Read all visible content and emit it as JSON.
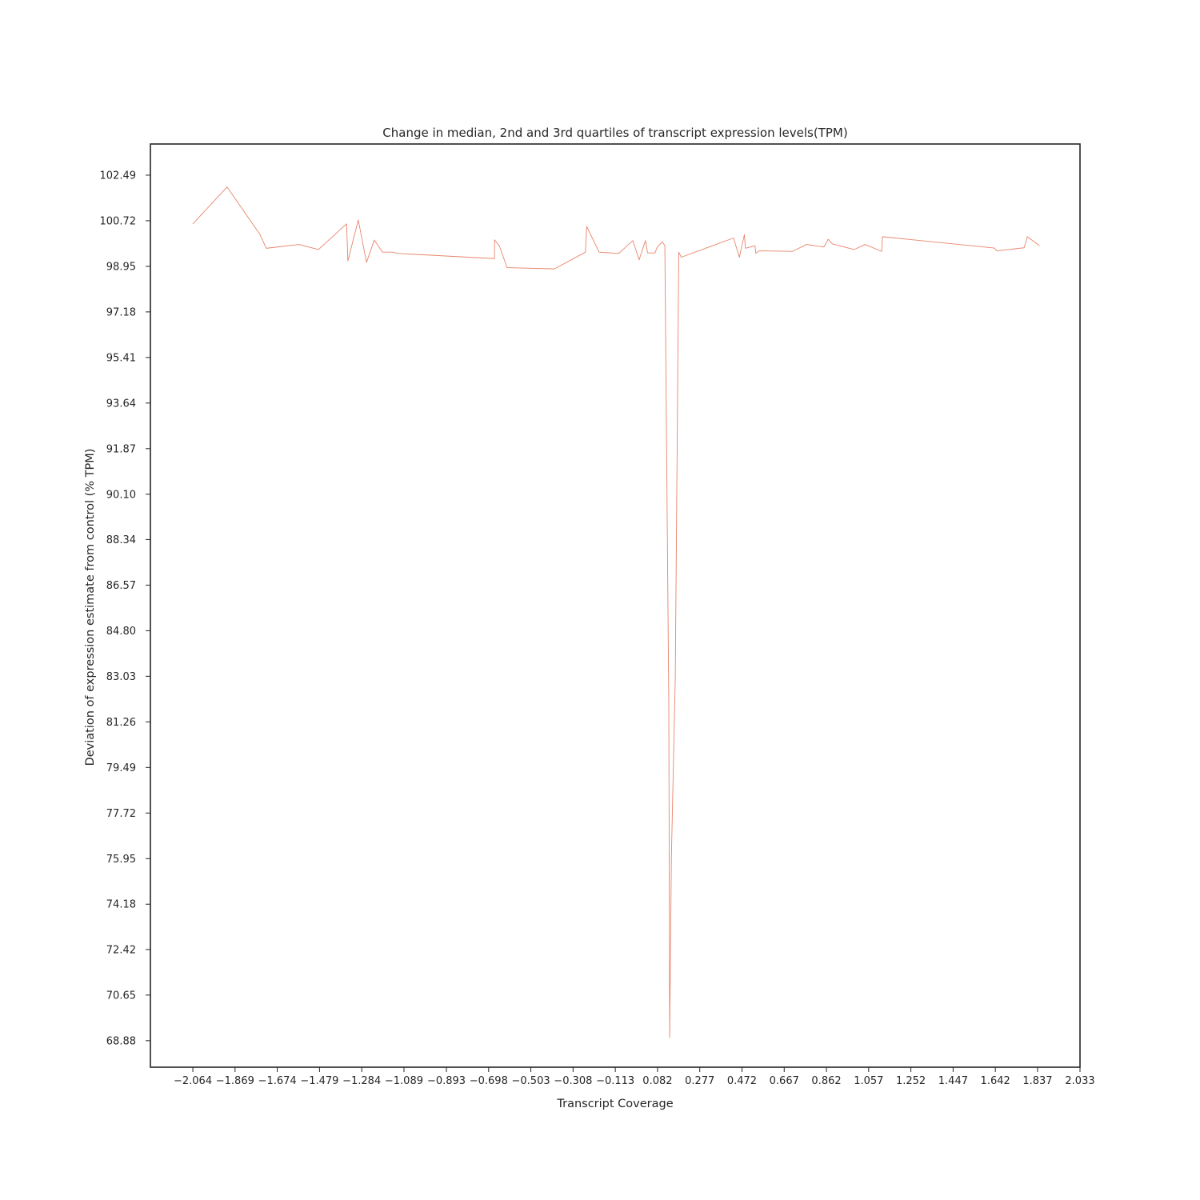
{
  "chart_data": {
    "type": "line",
    "title": "Change in median, 2nd and 3rd quartiles of transcript expression levels(TPM)",
    "xlabel": "Transcript Coverage",
    "ylabel": "Deviation of expression estimate from control (% TPM)",
    "xlim": [
      -2.26,
      2.033
    ],
    "ylim": [
      67.85,
      103.7
    ],
    "x_ticks": [
      -2.064,
      -1.869,
      -1.674,
      -1.479,
      -1.284,
      -1.089,
      -0.893,
      -0.698,
      -0.503,
      -0.308,
      -0.113,
      0.082,
      0.277,
      0.472,
      0.667,
      0.862,
      1.057,
      1.252,
      1.447,
      1.642,
      1.837,
      2.033
    ],
    "x_tick_labels": [
      "−2.064",
      "−1.869",
      "−1.674",
      "−1.479",
      "−1.284",
      "−1.089",
      "−0.893",
      "−0.698",
      "−0.503",
      "−0.308",
      "−0.113",
      "0.082",
      "0.277",
      "0.472",
      "0.667",
      "0.862",
      "1.057",
      "1.252",
      "1.447",
      "1.642",
      "1.837",
      "2.033"
    ],
    "y_ticks": [
      102.49,
      100.72,
      98.95,
      97.18,
      95.41,
      93.64,
      91.87,
      90.1,
      88.34,
      86.57,
      84.8,
      83.03,
      81.26,
      79.49,
      77.72,
      75.95,
      74.18,
      72.42,
      70.65,
      68.88
    ],
    "y_tick_labels": [
      "102.49",
      "100.72",
      "98.95",
      "97.18",
      "95.41",
      "93.64",
      "91.87",
      "90.10",
      "88.34",
      "86.57",
      "84.80",
      "83.03",
      "81.26",
      "79.49",
      "77.72",
      "75.95",
      "74.18",
      "72.42",
      "70.65",
      "68.88"
    ],
    "grid": false,
    "legend": false,
    "series": [
      {
        "color": "#e8846a",
        "x": [
          -2.064,
          -1.906,
          -1.755,
          -1.725,
          -1.574,
          -1.484,
          -1.354,
          -1.348,
          -1.3,
          -1.262,
          -1.226,
          -1.188,
          -1.142,
          -1.116,
          -0.671,
          -0.671,
          -0.648,
          -0.613,
          -0.394,
          -0.251,
          -0.245,
          -0.188,
          -0.097,
          -0.032,
          -0.003,
          0.026,
          0.036,
          0.07,
          0.081,
          0.104,
          0.116,
          0.116,
          0.134,
          0.138,
          0.146,
          0.164,
          0.18,
          0.189,
          0.191,
          0.433,
          0.46,
          0.483,
          0.488,
          0.532,
          0.536,
          0.55,
          0.705,
          0.77,
          0.85,
          0.87,
          0.89,
          0.99,
          1.04,
          1.117,
          1.121,
          1.637,
          1.649,
          1.775,
          1.79,
          1.846
        ],
        "y": [
          100.6,
          102.03,
          100.2,
          99.65,
          99.8,
          99.6,
          100.6,
          99.16,
          100.75,
          99.1,
          99.97,
          99.5,
          99.5,
          99.45,
          99.25,
          99.98,
          99.74,
          98.9,
          98.85,
          99.5,
          100.5,
          99.5,
          99.45,
          99.95,
          99.2,
          99.95,
          99.47,
          99.47,
          99.7,
          99.9,
          99.75,
          99.55,
          82.0,
          69.0,
          76.0,
          83.0,
          99.5,
          99.35,
          99.3,
          100.05,
          99.3,
          100.18,
          99.65,
          99.75,
          99.45,
          99.55,
          99.53,
          99.8,
          99.7,
          100.0,
          99.82,
          99.6,
          99.8,
          99.53,
          100.1,
          99.66,
          99.55,
          99.67,
          100.1,
          99.75
        ]
      }
    ]
  }
}
